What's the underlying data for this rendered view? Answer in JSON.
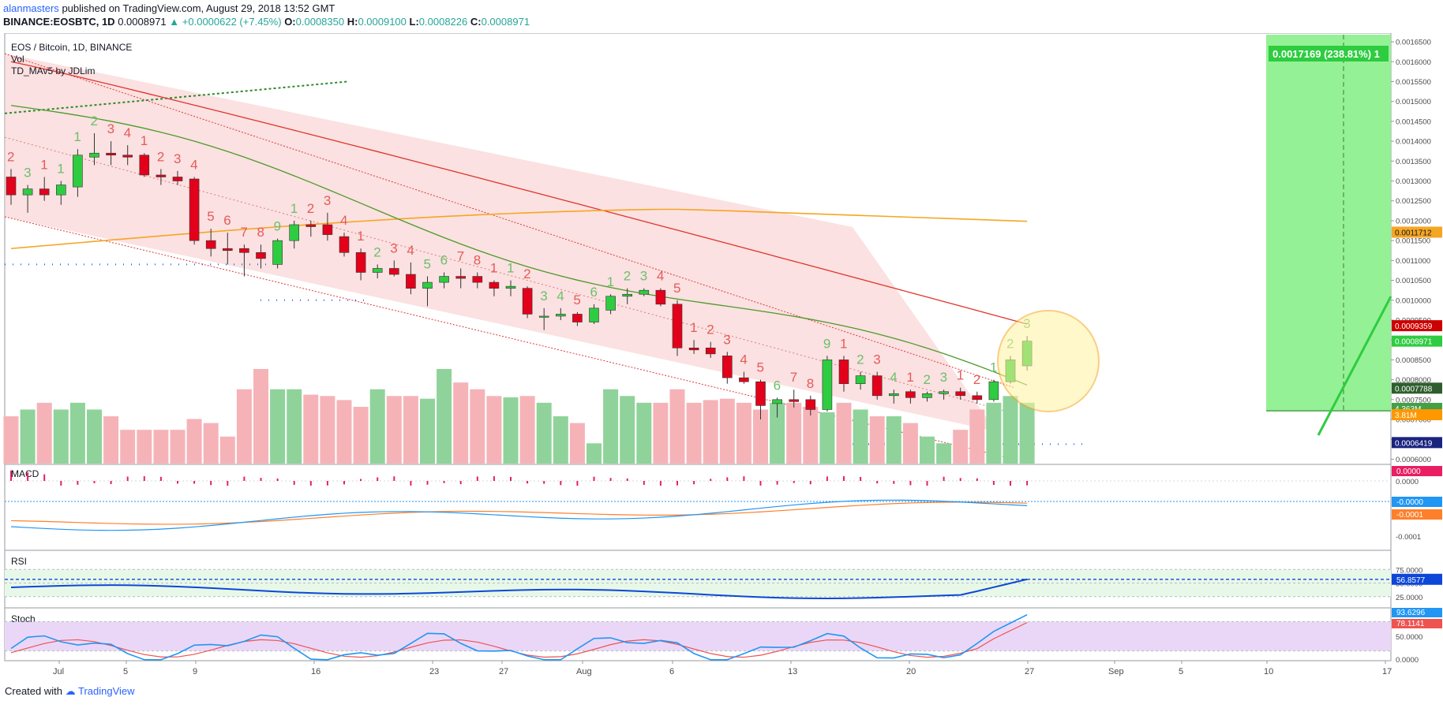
{
  "header": {
    "user": "alanmasters",
    "published": "published on TradingView.com, August 29, 2018 13:52 GMT",
    "symbol": "BINANCE:EOSBTC, 1D",
    "price": "0.0008971",
    "change": "+0.0000622 (+7.45%)",
    "o_label": "O:",
    "o": "0.0008350",
    "h_label": "H:",
    "h": "0.0009100",
    "l_label": "L:",
    "l": "0.0008226",
    "c_label": "C:",
    "c": "0.0008971"
  },
  "footer": {
    "created_with": "Created with",
    "brand": "TradingView"
  },
  "colors": {
    "up": "#2ecc40",
    "down": "#e3001b",
    "vol_up": "#8fd39a",
    "vol_down": "#f5b3b8",
    "ma_red": "#e0342c",
    "ma_orange": "#f5a623",
    "ma_green": "#4c9a2a",
    "macd_blue": "#2196f3",
    "macd_orange": "#ff7f2a",
    "rsi_blue": "#0d47d9",
    "stoch_red": "#ef5350"
  },
  "chart_data": [
    {
      "type": "candlestick",
      "title": "EOS / Bitcoin, 1D, BINANCE",
      "indicators": [
        "Vol",
        "TD_MAv5 by JDLim"
      ],
      "x_ticks": [
        "Jul",
        "5",
        "9",
        "16",
        "23",
        "27",
        "Aug",
        "6",
        "13",
        "20",
        "27",
        "Sep",
        "5",
        "10",
        "17"
      ],
      "y_ticks": [
        "0.0016500",
        "0.0016000",
        "0.0015500",
        "0.0015000",
        "0.0014500",
        "0.0014000",
        "0.0013500",
        "0.0013000",
        "0.0012500",
        "0.0012000",
        "0.0011500",
        "0.0011000",
        "0.0010500",
        "0.0010000",
        "0.0009500",
        "0.0009000",
        "0.0008500",
        "0.0008000",
        "0.0007500",
        "0.0007000",
        "0.0006500",
        "0.0006000"
      ],
      "ylim": [
        0.000595,
        0.001662
      ],
      "price_labels": [
        "0.0017169 (238.81%) 1",
        "0.0011712",
        "0.0009359",
        "0.0008971",
        "0.0007788",
        "4.363M",
        "3.81M",
        "0.0006419"
      ],
      "ohlc": [
        [
          0.00131,
          0.00133,
          0.00124,
          0.001265
        ],
        [
          0.001265,
          0.00129,
          0.00122,
          0.00128
        ],
        [
          0.00128,
          0.00131,
          0.00125,
          0.001265
        ],
        [
          0.001265,
          0.0013,
          0.00124,
          0.00129
        ],
        [
          0.001285,
          0.00138,
          0.00126,
          0.001365
        ],
        [
          0.00136,
          0.00142,
          0.00134,
          0.00137
        ],
        [
          0.00137,
          0.0014,
          0.00134,
          0.001365
        ],
        [
          0.001365,
          0.00139,
          0.00134,
          0.00136
        ],
        [
          0.001365,
          0.00137,
          0.00131,
          0.001315
        ],
        [
          0.001315,
          0.00133,
          0.00129,
          0.00131
        ],
        [
          0.00131,
          0.001325,
          0.00129,
          0.0013
        ],
        [
          0.001305,
          0.00131,
          0.00114,
          0.00115
        ],
        [
          0.00115,
          0.00118,
          0.00111,
          0.00113
        ],
        [
          0.00113,
          0.00117,
          0.00109,
          0.001125
        ],
        [
          0.00113,
          0.00114,
          0.00106,
          0.00112
        ],
        [
          0.00112,
          0.00114,
          0.00108,
          0.001105
        ],
        [
          0.00109,
          0.001155,
          0.00108,
          0.00115
        ],
        [
          0.00115,
          0.0012,
          0.00113,
          0.00119
        ],
        [
          0.00119,
          0.0012,
          0.00116,
          0.001185
        ],
        [
          0.00119,
          0.00122,
          0.00115,
          0.001165
        ],
        [
          0.00116,
          0.00117,
          0.00111,
          0.00112
        ],
        [
          0.00112,
          0.00113,
          0.00105,
          0.00107
        ],
        [
          0.00107,
          0.00109,
          0.001055,
          0.00108
        ],
        [
          0.00108,
          0.0011,
          0.00106,
          0.001065
        ],
        [
          0.001065,
          0.001095,
          0.001015,
          0.00103
        ],
        [
          0.00103,
          0.00106,
          0.000985,
          0.001045
        ],
        [
          0.001045,
          0.00107,
          0.00103,
          0.00106
        ],
        [
          0.00106,
          0.00108,
          0.00103,
          0.001055
        ],
        [
          0.00106,
          0.00107,
          0.00103,
          0.001045
        ],
        [
          0.001045,
          0.00105,
          0.00101,
          0.00103
        ],
        [
          0.00103,
          0.00105,
          0.00101,
          0.001035
        ],
        [
          0.00103,
          0.001035,
          0.000955,
          0.000965
        ],
        [
          0.00096,
          0.00098,
          0.000925,
          0.00096
        ],
        [
          0.00096,
          0.00098,
          0.00095,
          0.000965
        ],
        [
          0.000965,
          0.00097,
          0.000935,
          0.000945
        ],
        [
          0.000945,
          0.00099,
          0.00094,
          0.00098
        ],
        [
          0.000975,
          0.001015,
          0.000965,
          0.00101
        ],
        [
          0.00101,
          0.00103,
          0.00099,
          0.001015
        ],
        [
          0.001015,
          0.00103,
          0.00101,
          0.001025
        ],
        [
          0.001025,
          0.00103,
          0.000985,
          0.00099
        ],
        [
          0.00099,
          0.001,
          0.00086,
          0.00088
        ],
        [
          0.00088,
          0.0009,
          0.000865,
          0.000875
        ],
        [
          0.00088,
          0.000895,
          0.000855,
          0.000865
        ],
        [
          0.00086,
          0.00087,
          0.00079,
          0.000805
        ],
        [
          0.000805,
          0.00082,
          0.00079,
          0.000795
        ],
        [
          0.000795,
          0.0008,
          0.0007,
          0.000735
        ],
        [
          0.00074,
          0.000755,
          0.000705,
          0.00075
        ],
        [
          0.00075,
          0.000775,
          0.00073,
          0.000745
        ],
        [
          0.00075,
          0.00076,
          0.00071,
          0.000725
        ],
        [
          0.000725,
          0.00086,
          0.00072,
          0.00085
        ],
        [
          0.00085,
          0.00086,
          0.00077,
          0.00079
        ],
        [
          0.00079,
          0.00082,
          0.000775,
          0.00081
        ],
        [
          0.00081,
          0.00082,
          0.00075,
          0.00076
        ],
        [
          0.00076,
          0.000775,
          0.00074,
          0.000765
        ],
        [
          0.00077,
          0.000775,
          0.00074,
          0.000755
        ],
        [
          0.000755,
          0.00077,
          0.000745,
          0.000765
        ],
        [
          0.000765,
          0.000775,
          0.00075,
          0.00077
        ],
        [
          0.00077,
          0.00078,
          0.00075,
          0.00076
        ],
        [
          0.00076,
          0.00077,
          0.00074,
          0.00075
        ],
        [
          0.00075,
          0.0008,
          0.000745,
          0.000795
        ],
        [
          0.000795,
          0.00086,
          0.00079,
          0.00085
        ],
        [
          0.000835,
          0.00091,
          0.000823,
          0.000897
        ]
      ],
      "volume_bars": [
        0.35,
        0.4,
        0.45,
        0.4,
        0.45,
        0.4,
        0.35,
        0.25,
        0.25,
        0.25,
        0.25,
        0.33,
        0.3,
        0.2,
        0.55,
        0.7,
        0.55,
        0.55,
        0.51,
        0.5,
        0.47,
        0.42,
        0.55,
        0.5,
        0.5,
        0.48,
        0.7,
        0.6,
        0.55,
        0.5,
        0.49,
        0.5,
        0.45,
        0.35,
        0.3,
        0.15,
        0.55,
        0.5,
        0.45,
        0.45,
        0.55,
        0.45,
        0.47,
        0.48,
        0.45,
        0.4,
        0.45,
        0.45,
        0.42,
        0.38,
        0.45,
        0.4,
        0.35,
        0.35,
        0.3,
        0.2,
        0.15,
        0.25,
        0.4,
        0.45,
        0.5,
        0.45
      ],
      "td_counts_above": [
        "2",
        "3",
        "1",
        "1",
        "1",
        "2",
        "3",
        "4",
        "1",
        "2",
        "3",
        "4",
        "5",
        "6",
        "7",
        "8",
        "9",
        "1",
        "2",
        "3",
        "4",
        "1",
        "2",
        "3",
        "4",
        "5",
        "6",
        "7",
        "8",
        "1",
        "1",
        "2",
        "3",
        "4",
        "5",
        "6",
        "1",
        "2",
        "3",
        "4",
        "5",
        "1",
        "2",
        "3",
        "4",
        "5",
        "6",
        "7",
        "8",
        "9",
        "1",
        "2",
        "3",
        "4",
        "1",
        "2",
        "3",
        "1",
        "2",
        "1",
        "2",
        "3"
      ]
    },
    {
      "type": "line",
      "title": "MACD",
      "y_ticks": [
        "0.0000",
        "-0.0001"
      ],
      "price_labels": [
        "0.0000",
        "-0.0000",
        "-0.0001"
      ]
    },
    {
      "type": "line",
      "title": "RSI",
      "y_ticks": [
        "75.0000",
        "50.0000",
        "25.0000"
      ],
      "price_labels": [
        "56.8577"
      ]
    },
    {
      "type": "line",
      "title": "Stoch",
      "y_ticks": [
        "50.0000",
        "0.0000"
      ],
      "price_labels": [
        "93.6296",
        "78.1141"
      ]
    }
  ]
}
